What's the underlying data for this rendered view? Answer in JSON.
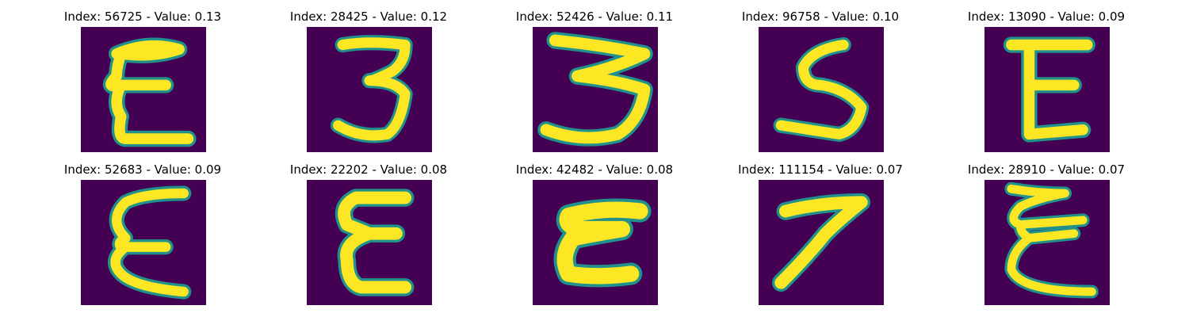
{
  "colors": {
    "background": "#440154",
    "stroke": "#fde725",
    "edge": "#21918c"
  },
  "panels": [
    {
      "title": "Index: 56725 - Value: 0.13",
      "glyph": "digit-3-mirrored"
    },
    {
      "title": "Index: 28425 - Value: 0.12",
      "glyph": "digit-3"
    },
    {
      "title": "Index: 52426 - Value: 0.11",
      "glyph": "digit-3"
    },
    {
      "title": "Index: 96758 - Value: 0.10",
      "glyph": "digit-5"
    },
    {
      "title": "Index: 13090 - Value: 0.09",
      "glyph": "digit-3-mirrored"
    },
    {
      "title": "Index: 52683 - Value: 0.09",
      "glyph": "digit-3-mirrored"
    },
    {
      "title": "Index: 22202 - Value: 0.08",
      "glyph": "digit-3-mirrored"
    },
    {
      "title": "Index: 42482 - Value: 0.08",
      "glyph": "digit-2-mirrored"
    },
    {
      "title": "Index: 111154 - Value: 0.07",
      "glyph": "digit-7"
    },
    {
      "title": "Index: 28910 - Value: 0.07",
      "glyph": "digit-3-mirrored"
    }
  ]
}
